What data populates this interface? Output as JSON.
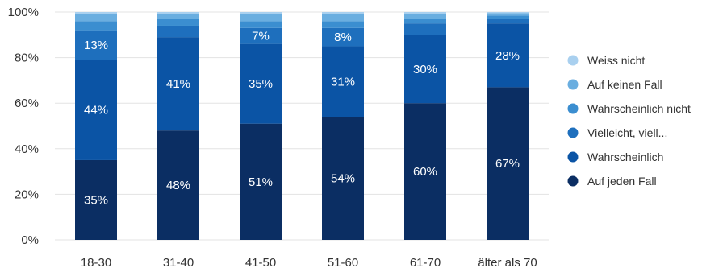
{
  "chart_data": {
    "type": "bar",
    "stacked": true,
    "percent_axis": true,
    "title": "",
    "xlabel": "",
    "ylabel": "",
    "ylim": [
      0,
      100
    ],
    "y_ticks": [
      "0%",
      "20%",
      "40%",
      "60%",
      "80%",
      "100%"
    ],
    "grid": true,
    "legend_position": "right",
    "categories": [
      "18-30",
      "31-40",
      "41-50",
      "51-60",
      "61-70",
      "älter als 70"
    ],
    "series": [
      {
        "name": "Auf jeden Fall",
        "color": "#0b2e63",
        "values": [
          35,
          48,
          51,
          54,
          60,
          67
        ],
        "labels": [
          "35%",
          "48%",
          "51%",
          "54%",
          "60%",
          "67%"
        ]
      },
      {
        "name": "Wahrscheinlich",
        "color": "#0b54a5",
        "values": [
          44,
          41,
          35,
          31,
          30,
          28
        ],
        "labels": [
          "44%",
          "41%",
          "35%",
          "31%",
          "30%",
          "28%"
        ]
      },
      {
        "name": "Vielleicht, viell...",
        "color": "#1e6fbd",
        "values": [
          13,
          5,
          7,
          8,
          5,
          2
        ],
        "labels": [
          "13%",
          "",
          "7%",
          "8%",
          "",
          ""
        ]
      },
      {
        "name": "Wahrscheinlich nicht",
        "color": "#3b8ed0",
        "values": [
          4,
          3,
          3,
          3,
          2,
          1.5
        ],
        "labels": [
          "",
          "",
          "",
          "",
          "",
          ""
        ]
      },
      {
        "name": "Auf keinen Fall",
        "color": "#6aaee0",
        "values": [
          3,
          2,
          3,
          3,
          2,
          1
        ],
        "labels": [
          "",
          "",
          "",
          "",
          "",
          ""
        ]
      },
      {
        "name": "Weiss nicht",
        "color": "#a9d0ef",
        "values": [
          1,
          1,
          1,
          1,
          1,
          0.5
        ],
        "labels": [
          "",
          "",
          "",
          "",
          "",
          ""
        ]
      }
    ],
    "legend_order": [
      "Weiss nicht",
      "Auf keinen Fall",
      "Wahrscheinlich nicht",
      "Vielleicht, viell...",
      "Wahrscheinlich",
      "Auf jeden Fall"
    ]
  }
}
